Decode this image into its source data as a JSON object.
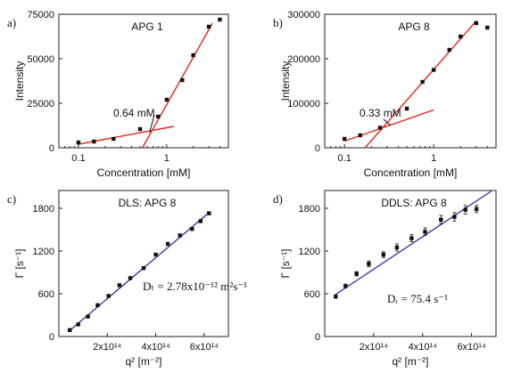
{
  "chart_data": [
    {
      "panel_label": "a)",
      "title": "APG 1",
      "type": "scatter",
      "xlabel": "Concentration [mM]",
      "ylabel": "Intensity",
      "xscale": "log",
      "xlim": [
        0.06,
        5
      ],
      "ylim": [
        0,
        75000
      ],
      "xticks": [
        0.1,
        1
      ],
      "xtick_labels": [
        "0.1",
        "1"
      ],
      "yticks": [
        0,
        25000,
        50000,
        75000
      ],
      "ytick_labels": [
        "0",
        "25000",
        "50000",
        "75000"
      ],
      "grid": false,
      "series": [
        {
          "marker": "square",
          "x": [
            0.1,
            0.15,
            0.25,
            0.5,
            0.8,
            1.0,
            1.5,
            2.0,
            3.0,
            4.0
          ],
          "y": [
            3000,
            3500,
            5000,
            10500,
            17500,
            27000,
            38000,
            52000,
            68000,
            72000
          ]
        }
      ],
      "fit_lines": [
        {
          "color": "#e8261c",
          "x": [
            0.1,
            1.2
          ],
          "y": [
            2000,
            12000
          ]
        },
        {
          "color": "#e8261c",
          "x": [
            0.53,
            3.3
          ],
          "y": [
            0,
            70000
          ]
        }
      ],
      "annotation": {
        "text": "0.64 mM",
        "arrow_to": [
          0.64,
          8500
        ]
      }
    },
    {
      "panel_label": "b)",
      "title": "APG 8",
      "type": "scatter",
      "xlabel": "Concentration [mM]",
      "ylabel": "Intensity",
      "xscale": "log",
      "xlim": [
        0.06,
        5
      ],
      "ylim": [
        0,
        300000
      ],
      "xticks": [
        0.1,
        1
      ],
      "xtick_labels": [
        "0.1",
        "1"
      ],
      "yticks": [
        0,
        100000,
        200000,
        300000
      ],
      "ytick_labels": [
        "0",
        "100000",
        "200000",
        "300000"
      ],
      "grid": false,
      "series": [
        {
          "marker": "square",
          "x": [
            0.1,
            0.15,
            0.25,
            0.5,
            0.75,
            1.0,
            1.5,
            2.0,
            3.0,
            4.0
          ],
          "y": [
            20000,
            28000,
            45000,
            88000,
            148000,
            175000,
            220000,
            250000,
            280000,
            270000
          ]
        }
      ],
      "fit_lines": [
        {
          "color": "#e8261c",
          "x": [
            0.1,
            1.0
          ],
          "y": [
            15000,
            85000
          ]
        },
        {
          "color": "#e8261c",
          "x": [
            0.17,
            3.0
          ],
          "y": [
            0,
            285000
          ]
        }
      ],
      "annotation": {
        "text": "0.33 mM",
        "arrow_to": [
          0.33,
          50000
        ]
      }
    },
    {
      "panel_label": "c)",
      "title": "DLS: APG 8",
      "type": "scatter",
      "xlabel": "q² [m⁻²]",
      "ylabel": "Γ [s⁻¹]",
      "xlim": [
        0,
        700000000000000.0
      ],
      "ylim": [
        0,
        2050
      ],
      "xticks": [
        200000000000000.0,
        400000000000000.0,
        600000000000000.0
      ],
      "xtick_labels": [
        "2x10¹⁴",
        "4x10¹⁴",
        "6x10¹⁴"
      ],
      "yticks": [
        0,
        600,
        1200,
        1800
      ],
      "ytick_labels": [
        "0",
        "600",
        "1200",
        "1800"
      ],
      "grid": false,
      "series": [
        {
          "marker": "square",
          "x": [
            45000000000000.0,
            80000000000000.0,
            120000000000000.0,
            160000000000000.0,
            205000000000000.0,
            250000000000000.0,
            295000000000000.0,
            350000000000000.0,
            400000000000000.0,
            450000000000000.0,
            500000000000000.0,
            550000000000000.0,
            585000000000000.0,
            620000000000000.0
          ],
          "y": [
            90,
            170,
            280,
            440,
            570,
            720,
            820,
            960,
            1150,
            1300,
            1420,
            1510,
            1620,
            1730
          ]
        }
      ],
      "fit_lines": [
        {
          "color": "#3a3aa8",
          "x": [
            40000000000000.0,
            620000000000000.0
          ],
          "y": [
            70,
            1740
          ]
        }
      ],
      "annotation": {
        "text": "Dₜ = 2.78x10⁻¹² m²s⁻¹"
      }
    },
    {
      "panel_label": "d)",
      "title": "DDLS: APG 8",
      "type": "scatter",
      "xlabel": "q² [m⁻²]",
      "ylabel": "Γ [s⁻¹]",
      "xlim": [
        0,
        700000000000000.0
      ],
      "ylim": [
        0,
        2050
      ],
      "xticks": [
        200000000000000.0,
        400000000000000.0,
        600000000000000.0
      ],
      "xtick_labels": [
        "2x10¹⁴",
        "4x10¹⁴",
        "6x10¹⁴"
      ],
      "yticks": [
        0,
        600,
        1200,
        1800
      ],
      "ytick_labels": [
        "0",
        "600",
        "1200",
        "1800"
      ],
      "grid": false,
      "series": [
        {
          "marker": "square",
          "x": [
            45000000000000.0,
            85000000000000.0,
            130000000000000.0,
            180000000000000.0,
            240000000000000.0,
            295000000000000.0,
            355000000000000.0,
            410000000000000.0,
            475000000000000.0,
            530000000000000.0,
            575000000000000.0,
            620000000000000.0
          ],
          "y": [
            560,
            710,
            880,
            1020,
            1150,
            1250,
            1380,
            1470,
            1640,
            1680,
            1780,
            1790
          ],
          "err": [
            20,
            25,
            30,
            40,
            40,
            50,
            50,
            55,
            60,
            60,
            60,
            50
          ]
        }
      ],
      "fit_lines": [
        {
          "color": "#3a3aa8",
          "x": [
            40000000000000.0,
            680000000000000.0
          ],
          "y": [
            580,
            2040
          ]
        }
      ],
      "annotation": {
        "text": "Dᵣ = 75.4 s⁻¹"
      }
    }
  ]
}
